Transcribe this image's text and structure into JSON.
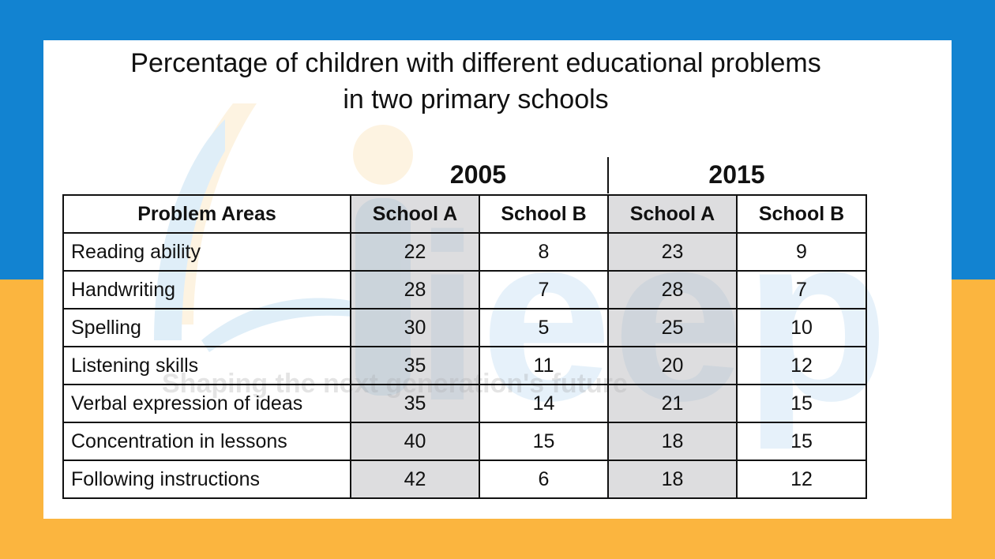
{
  "colors": {
    "background_top": "#1283d1",
    "background_bottom": "#fbb53f",
    "card": "#ffffff",
    "shaded_column": "#d3d3d6",
    "text": "#111111"
  },
  "chart_data": {
    "type": "table",
    "title_line1": "Percentage of children with different educational problems",
    "title_line2": "in two primary schools",
    "years": [
      "2005",
      "2015"
    ],
    "header": [
      "Problem Areas",
      "School A",
      "School B",
      "School A",
      "School B"
    ],
    "rows": [
      {
        "label": "Reading ability",
        "values": [
          "22",
          "8",
          "23",
          "9"
        ]
      },
      {
        "label": "Handwriting",
        "values": [
          "28",
          "7",
          "28",
          "7"
        ]
      },
      {
        "label": "Spelling",
        "values": [
          "30",
          "5",
          "25",
          "10"
        ]
      },
      {
        "label": "Listening skills",
        "values": [
          "35",
          "11",
          "20",
          "12"
        ]
      },
      {
        "label": "Verbal expression of ideas",
        "values": [
          "35",
          "14",
          "21",
          "15"
        ]
      },
      {
        "label": "Concentration in lessons",
        "values": [
          "40",
          "15",
          "18",
          "15"
        ]
      },
      {
        "label": "Following instructions",
        "values": [
          "42",
          "6",
          "18",
          "12"
        ]
      }
    ]
  },
  "watermark": {
    "logo_text": "ieep",
    "tagline": "Shaping the next generation's future"
  }
}
